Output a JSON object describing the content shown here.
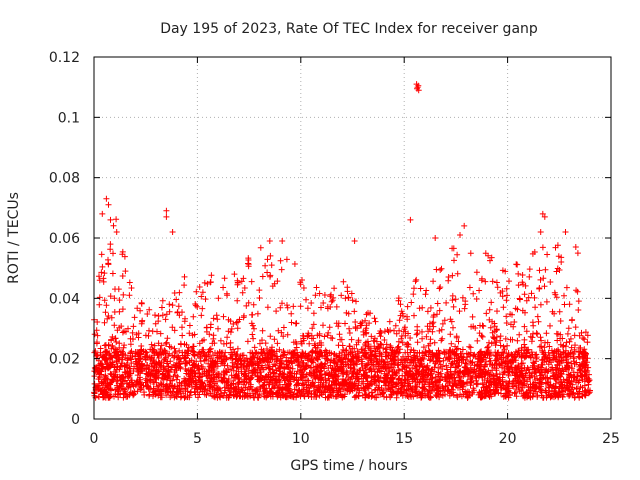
{
  "chart_data": {
    "type": "scatter",
    "title": "Day 195 of 2023, Rate Of TEC Index for receiver ganp",
    "xlabel": "GPS time / hours",
    "ylabel": "ROTI / TECUs",
    "xlim": [
      0,
      25
    ],
    "ylim": [
      0,
      0.12
    ],
    "x_ticks": [
      "0",
      "5",
      "10",
      "15",
      "20",
      "25"
    ],
    "x_tick_values": [
      0,
      5,
      10,
      15,
      20,
      25
    ],
    "y_ticks": [
      "0",
      "0.02",
      "0.04",
      "0.06",
      "0.08",
      "0.1",
      "0.12"
    ],
    "y_tick_values": [
      0,
      0.02,
      0.04,
      0.06,
      0.08,
      0.1,
      0.12
    ],
    "grid": true,
    "marker": "+",
    "series": [
      {
        "name": "ROTI",
        "color": "#ff0000",
        "band": {
          "x_start": 0.0,
          "x_end": 24.0,
          "baseline_low": 0.007,
          "baseline_high": 0.022
        },
        "profile_hours": [
          0,
          1,
          2,
          3,
          4,
          5,
          6,
          7,
          8,
          9,
          10,
          11,
          12,
          13,
          14,
          15,
          16,
          17,
          18,
          19,
          20,
          21,
          22,
          23,
          24
        ],
        "profile_peak_roti": [
          0.05,
          0.07,
          0.04,
          0.035,
          0.05,
          0.045,
          0.05,
          0.05,
          0.058,
          0.055,
          0.05,
          0.045,
          0.05,
          0.04,
          0.03,
          0.045,
          0.05,
          0.055,
          0.062,
          0.055,
          0.05,
          0.055,
          0.06,
          0.055,
          0.03
        ],
        "notable_points": [
          {
            "x": 0.6,
            "y": 0.073
          },
          {
            "x": 0.7,
            "y": 0.071
          },
          {
            "x": 0.4,
            "y": 0.068
          },
          {
            "x": 0.8,
            "y": 0.066
          },
          {
            "x": 3.5,
            "y": 0.069
          },
          {
            "x": 3.5,
            "y": 0.067
          },
          {
            "x": 3.8,
            "y": 0.062
          },
          {
            "x": 1.1,
            "y": 0.062
          },
          {
            "x": 8.5,
            "y": 0.059
          },
          {
            "x": 9.1,
            "y": 0.059
          },
          {
            "x": 12.6,
            "y": 0.059
          },
          {
            "x": 15.3,
            "y": 0.066
          },
          {
            "x": 15.6,
            "y": 0.111
          },
          {
            "x": 15.65,
            "y": 0.11
          },
          {
            "x": 15.7,
            "y": 0.109
          },
          {
            "x": 15.62,
            "y": 0.1095
          },
          {
            "x": 15.68,
            "y": 0.1105
          },
          {
            "x": 16.5,
            "y": 0.06
          },
          {
            "x": 17.9,
            "y": 0.064
          },
          {
            "x": 17.7,
            "y": 0.061
          },
          {
            "x": 21.7,
            "y": 0.068
          },
          {
            "x": 21.8,
            "y": 0.067
          },
          {
            "x": 21.6,
            "y": 0.062
          },
          {
            "x": 22.8,
            "y": 0.062
          },
          {
            "x": 23.3,
            "y": 0.057
          },
          {
            "x": 23.4,
            "y": 0.055
          }
        ]
      }
    ]
  }
}
